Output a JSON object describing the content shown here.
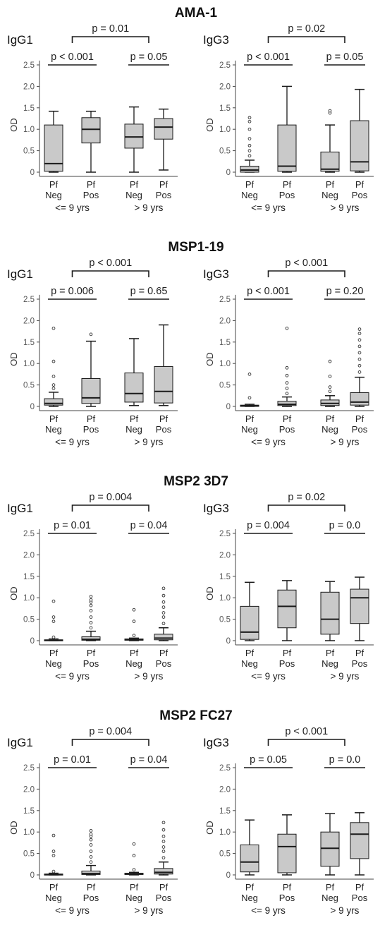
{
  "chart_data": [
    {
      "type": "box",
      "title": "AMA-1",
      "panels": [
        {
          "label": "IgG1",
          "ylabel": "OD",
          "ylim": [
            0,
            2.6
          ],
          "yticks": [
            "0",
            "0.5",
            "1.0",
            "1.5",
            "2.0",
            "2.5"
          ],
          "p_top": "p = 0.01",
          "p_left": "p < 0.001",
          "p_right": "p = 0.05",
          "boxes": [
            {
              "group": "Pf",
              "status": "Neg",
              "whislo": 0,
              "q1": 0.02,
              "med": 0.2,
              "q3": 1.1,
              "whishi": 1.42,
              "fliers": []
            },
            {
              "group": "Pf",
              "status": "Pos",
              "whislo": 0,
              "q1": 0.68,
              "med": 1.0,
              "q3": 1.27,
              "whishi": 1.42,
              "fliers": []
            },
            {
              "group": "Pf",
              "status": "Neg",
              "whislo": 0,
              "q1": 0.56,
              "med": 0.82,
              "q3": 1.12,
              "whishi": 1.52,
              "fliers": []
            },
            {
              "group": "Pf",
              "status": "Pos",
              "whislo": 0.05,
              "q1": 0.77,
              "med": 1.05,
              "q3": 1.25,
              "whishi": 1.47,
              "fliers": []
            }
          ]
        },
        {
          "label": "IgG3",
          "ylabel": "OD",
          "ylim": [
            0,
            2.6
          ],
          "yticks": [
            "0",
            "0.5",
            "1.0",
            "1.5",
            "2.0",
            "2.5"
          ],
          "p_top": "p = 0.02",
          "p_left": "p < 0.001",
          "p_right": "p = 0.05",
          "boxes": [
            {
              "group": "Pf",
              "status": "Neg",
              "whislo": 0,
              "q1": 0.0,
              "med": 0.05,
              "q3": 0.14,
              "whishi": 0.28,
              "fliers": [
                0.38,
                0.5,
                0.62,
                0.78,
                1.0,
                1.18,
                1.27
              ]
            },
            {
              "group": "Pf",
              "status": "Pos",
              "whislo": 0,
              "q1": 0.02,
              "med": 0.14,
              "q3": 1.1,
              "whishi": 2.0,
              "fliers": []
            },
            {
              "group": "Pf",
              "status": "Neg",
              "whislo": 0,
              "q1": 0.02,
              "med": 0.07,
              "q3": 0.47,
              "whishi": 1.1,
              "fliers": [
                1.38,
                1.43
              ]
            },
            {
              "group": "Pf",
              "status": "Pos",
              "whislo": 0,
              "q1": 0.03,
              "med": 0.24,
              "q3": 1.2,
              "whishi": 1.93,
              "fliers": []
            }
          ]
        }
      ],
      "x_groups": [
        "<= 9 yrs",
        "> 9 yrs"
      ]
    },
    {
      "type": "box",
      "title": "MSP1-19",
      "panels": [
        {
          "label": "IgG1",
          "ylabel": "OD",
          "ylim": [
            0,
            2.6
          ],
          "yticks": [
            "0",
            "0.5",
            "1.0",
            "1.5",
            "2.0",
            "2.5"
          ],
          "p_top": "p < 0.001",
          "p_left": "p = 0.006",
          "p_right": "p = 0.65",
          "boxes": [
            {
              "group": "Pf",
              "status": "Neg",
              "whislo": 0,
              "q1": 0.03,
              "med": 0.07,
              "q3": 0.18,
              "whishi": 0.33,
              "fliers": [
                0.42,
                0.5,
                0.7,
                1.05,
                1.82
              ]
            },
            {
              "group": "Pf",
              "status": "Pos",
              "whislo": 0,
              "q1": 0.07,
              "med": 0.2,
              "q3": 0.65,
              "whishi": 1.52,
              "fliers": [
                1.68
              ]
            },
            {
              "group": "Pf",
              "status": "Neg",
              "whislo": 0.02,
              "q1": 0.1,
              "med": 0.3,
              "q3": 0.78,
              "whishi": 1.58,
              "fliers": []
            },
            {
              "group": "Pf",
              "status": "Pos",
              "whislo": 0.02,
              "q1": 0.08,
              "med": 0.35,
              "q3": 0.93,
              "whishi": 1.9,
              "fliers": []
            }
          ]
        },
        {
          "label": "IgG3",
          "ylabel": "OD",
          "ylim": [
            0,
            2.6
          ],
          "yticks": [
            "0",
            "0.5",
            "1.0",
            "1.5",
            "2.0",
            "2.5"
          ],
          "p_top": "p < 0.001",
          "p_left": "p < 0.001",
          "p_right": "p = 0.20",
          "boxes": [
            {
              "group": "Pf",
              "status": "Neg",
              "whislo": 0,
              "q1": 0.0,
              "med": 0.01,
              "q3": 0.03,
              "whishi": 0.05,
              "fliers": [
                0.2,
                0.75
              ]
            },
            {
              "group": "Pf",
              "status": "Pos",
              "whislo": 0,
              "q1": 0.02,
              "med": 0.05,
              "q3": 0.12,
              "whishi": 0.22,
              "fliers": [
                0.3,
                0.42,
                0.55,
                0.72,
                0.9,
                1.82
              ]
            },
            {
              "group": "Pf",
              "status": "Neg",
              "whislo": 0,
              "q1": 0.02,
              "med": 0.07,
              "q3": 0.15,
              "whishi": 0.25,
              "fliers": [
                0.35,
                0.45,
                0.7,
                1.05
              ]
            },
            {
              "group": "Pf",
              "status": "Pos",
              "whislo": 0,
              "q1": 0.03,
              "med": 0.1,
              "q3": 0.32,
              "whishi": 0.68,
              "fliers": [
                0.8,
                0.95,
                1.1,
                1.25,
                1.4,
                1.55,
                1.7,
                1.8
              ]
            }
          ]
        }
      ],
      "x_groups": [
        "<= 9 yrs",
        "> 9 yrs"
      ]
    },
    {
      "type": "box",
      "title": "MSP2 3D7",
      "panels": [
        {
          "label": "IgG1",
          "ylabel": "OD",
          "ylim": [
            0,
            2.6
          ],
          "yticks": [
            "0",
            "0.5",
            "1.0",
            "1.5",
            "2.0",
            "2.5"
          ],
          "p_top": "p = 0.004",
          "p_left": "p = 0.01",
          "p_right": "p = 0.04",
          "boxes": [
            {
              "group": "Pf",
              "status": "Neg",
              "whislo": 0,
              "q1": 0.0,
              "med": 0.01,
              "q3": 0.02,
              "whishi": 0.04,
              "fliers": [
                0.08,
                0.45,
                0.55,
                0.92
              ]
            },
            {
              "group": "Pf",
              "status": "Pos",
              "whislo": 0,
              "q1": 0.01,
              "med": 0.03,
              "q3": 0.09,
              "whishi": 0.22,
              "fliers": [
                0.3,
                0.42,
                0.55,
                0.7,
                0.82,
                0.9,
                0.95,
                1.03
              ]
            },
            {
              "group": "Pf",
              "status": "Neg",
              "whislo": 0,
              "q1": 0.01,
              "med": 0.02,
              "q3": 0.04,
              "whishi": 0.06,
              "fliers": [
                0.12,
                0.45,
                0.72
              ]
            },
            {
              "group": "Pf",
              "status": "Pos",
              "whislo": 0,
              "q1": 0.02,
              "med": 0.06,
              "q3": 0.15,
              "whishi": 0.3,
              "fliers": [
                0.4,
                0.55,
                0.65,
                0.78,
                0.9,
                1.05,
                1.22
              ]
            }
          ]
        },
        {
          "label": "IgG3",
          "ylabel": "OD",
          "ylim": [
            0,
            2.6
          ],
          "yticks": [
            "0",
            "0.5",
            "1.0",
            "1.5",
            "2.0",
            "2.5"
          ],
          "p_top": "p = 0.02",
          "p_left": "p = 0.004",
          "p_right": "p = 0.0",
          "boxes": [
            {
              "group": "Pf",
              "status": "Neg",
              "whislo": 0,
              "q1": 0.03,
              "med": 0.2,
              "q3": 0.8,
              "whishi": 1.36,
              "fliers": []
            },
            {
              "group": "Pf",
              "status": "Pos",
              "whislo": 0,
              "q1": 0.3,
              "med": 0.8,
              "q3": 1.18,
              "whishi": 1.4,
              "fliers": []
            },
            {
              "group": "Pf",
              "status": "Neg",
              "whislo": 0,
              "q1": 0.15,
              "med": 0.5,
              "q3": 1.13,
              "whishi": 1.38,
              "fliers": []
            },
            {
              "group": "Pf",
              "status": "Pos",
              "whislo": 0,
              "q1": 0.4,
              "med": 1.0,
              "q3": 1.2,
              "whishi": 1.48,
              "fliers": []
            }
          ]
        }
      ],
      "x_groups": [
        "<= 9 yrs",
        "> 9 yrs"
      ]
    },
    {
      "type": "box",
      "title": "MSP2 FC27",
      "panels": [
        {
          "label": "IgG1",
          "ylabel": "OD",
          "ylim": [
            0,
            2.6
          ],
          "yticks": [
            "0",
            "0.5",
            "1.0",
            "1.5",
            "2.0",
            "2.5"
          ],
          "p_top": "p = 0.004",
          "p_left": "p = 0.01",
          "p_right": "p = 0.04",
          "boxes": [
            {
              "group": "Pf",
              "status": "Neg",
              "whislo": 0,
              "q1": 0.0,
              "med": 0.01,
              "q3": 0.02,
              "whishi": 0.04,
              "fliers": [
                0.08,
                0.45,
                0.55,
                0.92
              ]
            },
            {
              "group": "Pf",
              "status": "Pos",
              "whislo": 0,
              "q1": 0.01,
              "med": 0.03,
              "q3": 0.09,
              "whishi": 0.22,
              "fliers": [
                0.3,
                0.42,
                0.55,
                0.7,
                0.82,
                0.9,
                0.95,
                1.03
              ]
            },
            {
              "group": "Pf",
              "status": "Neg",
              "whislo": 0,
              "q1": 0.01,
              "med": 0.02,
              "q3": 0.04,
              "whishi": 0.06,
              "fliers": [
                0.12,
                0.45,
                0.72
              ]
            },
            {
              "group": "Pf",
              "status": "Pos",
              "whislo": 0,
              "q1": 0.02,
              "med": 0.06,
              "q3": 0.15,
              "whishi": 0.3,
              "fliers": [
                0.4,
                0.55,
                0.65,
                0.78,
                0.9,
                1.05,
                1.22
              ]
            }
          ]
        },
        {
          "label": "IgG3",
          "ylabel": "OD",
          "ylim": [
            0,
            2.6
          ],
          "yticks": [
            "0",
            "0.5",
            "1.0",
            "1.5",
            "2.0",
            "2.5"
          ],
          "p_top": "p < 0.001",
          "p_left": "p = 0.05",
          "p_right": "p = 0.0",
          "boxes": [
            {
              "group": "Pf",
              "status": "Neg",
              "whislo": 0,
              "q1": 0.07,
              "med": 0.3,
              "q3": 0.7,
              "whishi": 1.28,
              "fliers": []
            },
            {
              "group": "Pf",
              "status": "Pos",
              "whislo": 0,
              "q1": 0.05,
              "med": 0.66,
              "q3": 0.95,
              "whishi": 1.4,
              "fliers": []
            },
            {
              "group": "Pf",
              "status": "Neg",
              "whislo": 0,
              "q1": 0.2,
              "med": 0.62,
              "q3": 1.0,
              "whishi": 1.43,
              "fliers": []
            },
            {
              "group": "Pf",
              "status": "Pos",
              "whislo": 0,
              "q1": 0.38,
              "med": 0.95,
              "q3": 1.22,
              "whishi": 1.45,
              "fliers": []
            }
          ]
        }
      ],
      "x_groups": [
        "<= 9 yrs",
        "> 9 yrs"
      ]
    }
  ],
  "colors": {
    "box_fill": "#c9c9c9",
    "line": "#1a1a1a",
    "axis": "#444444",
    "tick_text": "#555555"
  }
}
